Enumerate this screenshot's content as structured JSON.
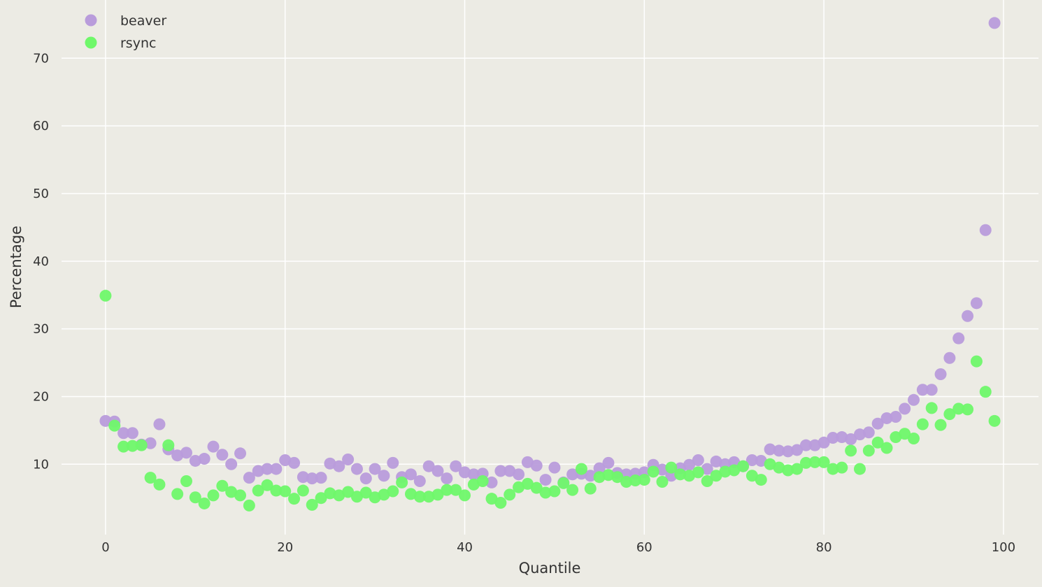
{
  "chart_data": {
    "type": "scatter",
    "title": "",
    "xlabel": "Quantile",
    "ylabel": "Percentage",
    "xlim": [
      -4.9,
      103.9
    ],
    "ylim": [
      -0.4,
      78.6
    ],
    "xticks": [
      0,
      20,
      40,
      60,
      80,
      100
    ],
    "yticks": [
      10,
      20,
      30,
      40,
      50,
      60,
      70
    ],
    "grid": true,
    "legend_placement": "top-left",
    "background_color": "#ecebe4",
    "grid_color": "#ffffff",
    "series": [
      {
        "name": "beaver",
        "color": "#b99cdb",
        "values": [
          16.4,
          16.3,
          14.6,
          14.6,
          12.9,
          13.1,
          15.9,
          12.2,
          11.3,
          11.7,
          10.5,
          10.8,
          12.6,
          11.4,
          10.0,
          11.6,
          8.0,
          9.0,
          9.3,
          9.3,
          10.6,
          10.2,
          8.1,
          7.9,
          8.0,
          10.1,
          9.7,
          10.7,
          9.3,
          7.9,
          9.3,
          8.3,
          10.2,
          8.1,
          8.5,
          7.5,
          9.7,
          9.0,
          7.9,
          9.7,
          8.8,
          8.5,
          8.6,
          7.3,
          9.0,
          9.0,
          8.5,
          10.3,
          9.8,
          7.7,
          9.5,
          7.3,
          8.5,
          8.6,
          8.3,
          9.4,
          10.2,
          8.7,
          8.5,
          8.6,
          8.8,
          9.9,
          9.2,
          8.3,
          9.4,
          9.9,
          10.6,
          9.3,
          10.4,
          10.0,
          10.3,
          9.7,
          10.6,
          10.5,
          12.2,
          12.0,
          11.9,
          12.1,
          12.8,
          12.8,
          13.2,
          13.9,
          14.0,
          13.7,
          14.4,
          14.7,
          16.0,
          16.8,
          17.0,
          18.2,
          19.5,
          21.0,
          21.0,
          23.3,
          25.7,
          28.6,
          31.9,
          33.8,
          44.6,
          75.2
        ]
      },
      {
        "name": "rsync",
        "color": "#6ff86a",
        "values": [
          34.9,
          15.7,
          12.6,
          12.7,
          12.8,
          8.0,
          7.0,
          12.8,
          5.6,
          7.5,
          5.1,
          4.2,
          5.4,
          6.8,
          5.9,
          5.4,
          3.9,
          6.1,
          6.9,
          6.1,
          6.0,
          4.9,
          6.1,
          4.0,
          5.0,
          5.7,
          5.4,
          5.9,
          5.2,
          5.8,
          5.1,
          5.5,
          6.0,
          7.3,
          5.6,
          5.2,
          5.2,
          5.5,
          6.2,
          6.2,
          5.4,
          7.0,
          7.5,
          4.9,
          4.3,
          5.5,
          6.6,
          7.1,
          6.5,
          5.8,
          6.0,
          7.2,
          6.2,
          9.3,
          6.4,
          8.1,
          8.4,
          8.1,
          7.4,
          7.6,
          7.7,
          8.9,
          7.4,
          9.5,
          8.5,
          8.3,
          8.8,
          7.5,
          8.3,
          8.9,
          9.1,
          9.7,
          8.3,
          7.7,
          10.0,
          9.5,
          9.1,
          9.3,
          10.2,
          10.3,
          10.3,
          9.3,
          9.5,
          12.0,
          9.3,
          12.0,
          13.2,
          12.4,
          14.0,
          14.5,
          13.8,
          15.9,
          18.3,
          15.8,
          17.4,
          18.2,
          18.1,
          25.2,
          20.7,
          16.4
        ]
      }
    ]
  }
}
